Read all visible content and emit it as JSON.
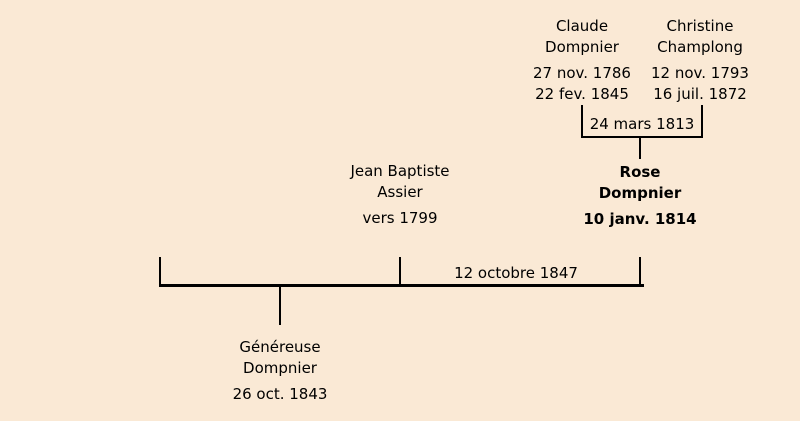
{
  "diagram": {
    "type": "family-tree",
    "background_color": "#fae9d5",
    "line_color": "#000000",
    "persons": {
      "claude": {
        "name1": "Claude",
        "name2": "Dompnier",
        "birth": "27 nov. 1786",
        "death": "22 fev. 1845"
      },
      "christine": {
        "name1": "Christine",
        "name2": "Champlong",
        "birth": "12 nov. 1793",
        "death": "16 juil. 1872"
      },
      "rose": {
        "name1": "Rose",
        "name2": "Dompnier",
        "birth": "10 janv. 1814"
      },
      "jean_baptiste": {
        "name1": "Jean Baptiste",
        "name2": "Assier",
        "birth": "vers 1799"
      },
      "genereuse": {
        "name1": "Généreuse",
        "name2": "Dompnier",
        "birth": "26 oct. 1843"
      }
    },
    "unions": {
      "claude_christine": {
        "date": "24 mars 1813"
      },
      "jean_baptiste_rose": {
        "date": "12 octobre 1847"
      }
    }
  }
}
